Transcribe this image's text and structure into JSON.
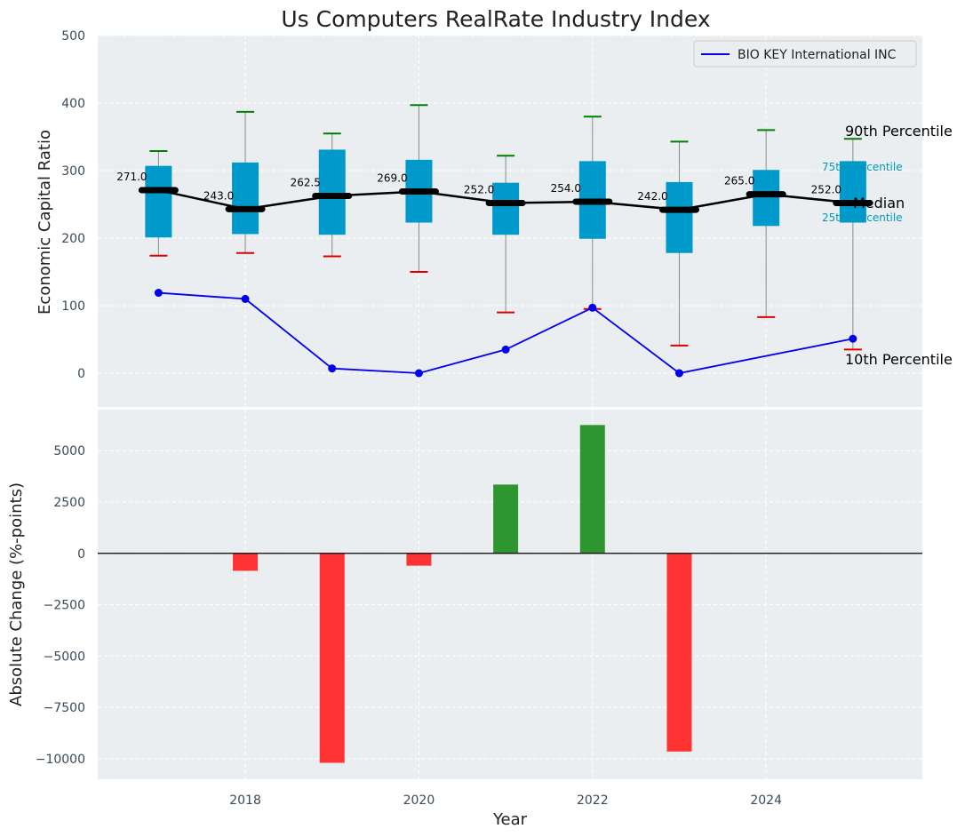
{
  "chart_data": [
    {
      "type": "box-line",
      "title": "Us Computers RealRate Industry Index",
      "ylabel": "Economic Capital Ratio",
      "xlabel": "",
      "ylim": [
        -50,
        500
      ],
      "yticks": [
        "500",
        "400",
        "300",
        "200",
        "100",
        "0"
      ],
      "ytick_values": [
        500,
        400,
        300,
        200,
        100,
        0
      ],
      "grid": true,
      "legend": {
        "position": "top-right",
        "entries": [
          {
            "label": "BIO KEY International INC",
            "color": "#0000ee"
          }
        ]
      },
      "years": [
        2017,
        2018,
        2019,
        2020,
        2021,
        2022,
        2023,
        2024,
        2025
      ],
      "p10": [
        174,
        178,
        173,
        150,
        90,
        95,
        41,
        83,
        35
      ],
      "p25": [
        201,
        206,
        205,
        223,
        205,
        199,
        178,
        218,
        223
      ],
      "median": [
        271.0,
        243.0,
        262.5,
        269.0,
        252.0,
        254.0,
        242.0,
        265.0,
        252.0
      ],
      "median_labels": [
        "271.0",
        "243.0",
        "262.5",
        "269.0",
        "252.0",
        "254.0",
        "242.0",
        "265.0",
        "252.0"
      ],
      "p75": [
        307,
        312,
        331,
        316,
        282,
        314,
        283,
        301,
        314
      ],
      "p90": [
        329,
        387,
        355,
        397,
        322,
        380,
        343,
        360,
        347
      ],
      "company_series": {
        "name": "BIO KEY International INC",
        "years": [
          2017,
          2018,
          2019,
          2020,
          2021,
          2022,
          2023,
          2025
        ],
        "values": [
          119,
          110,
          7,
          0,
          35,
          97,
          0,
          51
        ]
      },
      "annotations": {
        "p90": "90th Percentile",
        "p75": "75th Percentile",
        "median": "Median",
        "p25": "25th Percentile",
        "p10": "10th Percentile"
      },
      "colors": {
        "box": "#0099cc",
        "median": "#000000",
        "p90_cap": "#008000",
        "p10_cap": "#dd0000",
        "company": "#0000ee",
        "whisker": "#888888",
        "bg": "#eaeef0",
        "p75_text": "#0099bb"
      }
    },
    {
      "type": "bar",
      "ylabel": "Absolute Change (%-points)",
      "xlabel": "Year",
      "ylim": [
        -11000,
        7000
      ],
      "yticks": [
        "5000",
        "2500",
        "0",
        "−2500",
        "−5000",
        "−7500",
        "−10000"
      ],
      "ytick_values": [
        5000,
        2500,
        0,
        -2500,
        -5000,
        -7500,
        -10000
      ],
      "xticks": [
        "2018",
        "2020",
        "2022",
        "2024"
      ],
      "xtick_values": [
        2018,
        2020,
        2022,
        2024
      ],
      "xlim": [
        2016.3,
        2025.8
      ],
      "years": [
        2018,
        2019,
        2020,
        2021,
        2022,
        2023
      ],
      "values": [
        -850,
        -10200,
        -600,
        3350,
        6250,
        -9650
      ],
      "colors": {
        "positive": "#2f962f",
        "negative": "#ff3333",
        "zero_line": "#000000"
      }
    }
  ]
}
